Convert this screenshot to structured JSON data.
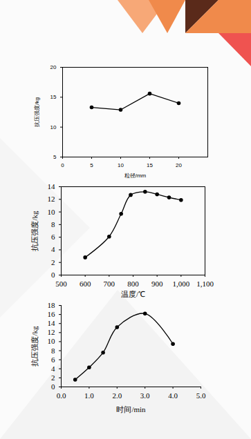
{
  "chart_data": [
    {
      "type": "line",
      "x_label": "粒径/mm",
      "y_label": "抗压强度/kg",
      "x": [
        5,
        10,
        15,
        20
      ],
      "values": [
        13.3,
        12.9,
        15.6,
        14.0
      ],
      "xlim": [
        0,
        25
      ],
      "xticks": [
        0,
        5,
        10,
        15,
        20
      ],
      "ylim": [
        5,
        20
      ],
      "yticks": [
        5,
        10,
        15,
        20
      ],
      "color": "#000000",
      "marker": "circle",
      "line_style": "straight"
    },
    {
      "type": "line",
      "x_label": "温度/℃",
      "y_label": "抗压强度/kg",
      "x": [
        600,
        700,
        750,
        790,
        850,
        900,
        950,
        1000
      ],
      "values": [
        2.8,
        6.1,
        9.7,
        12.7,
        13.2,
        12.8,
        12.3,
        11.9
      ],
      "xlim": [
        500,
        1100
      ],
      "xticks": [
        500,
        600,
        700,
        800,
        900,
        1000,
        1100
      ],
      "ylim": [
        0,
        14
      ],
      "yticks": [
        0,
        2,
        4,
        6,
        8,
        10,
        12,
        14
      ],
      "color": "#000000",
      "marker": "circle",
      "line_style": "smooth"
    },
    {
      "type": "line",
      "x_label": "时间/min",
      "y_label": "抗压强度/kg",
      "x": [
        0.5,
        1,
        1.5,
        2,
        3,
        4
      ],
      "values": [
        1.6,
        4.3,
        7.6,
        13.2,
        16.2,
        9.5
      ],
      "xlim": [
        0,
        5
      ],
      "xticks": [
        0,
        1,
        2,
        3,
        4,
        5
      ],
      "ylim": [
        0,
        18
      ],
      "yticks": [
        0,
        2,
        4,
        6,
        8,
        10,
        12,
        14,
        16,
        18
      ],
      "color": "#000000",
      "marker": "circle",
      "line_style": "smooth"
    }
  ]
}
